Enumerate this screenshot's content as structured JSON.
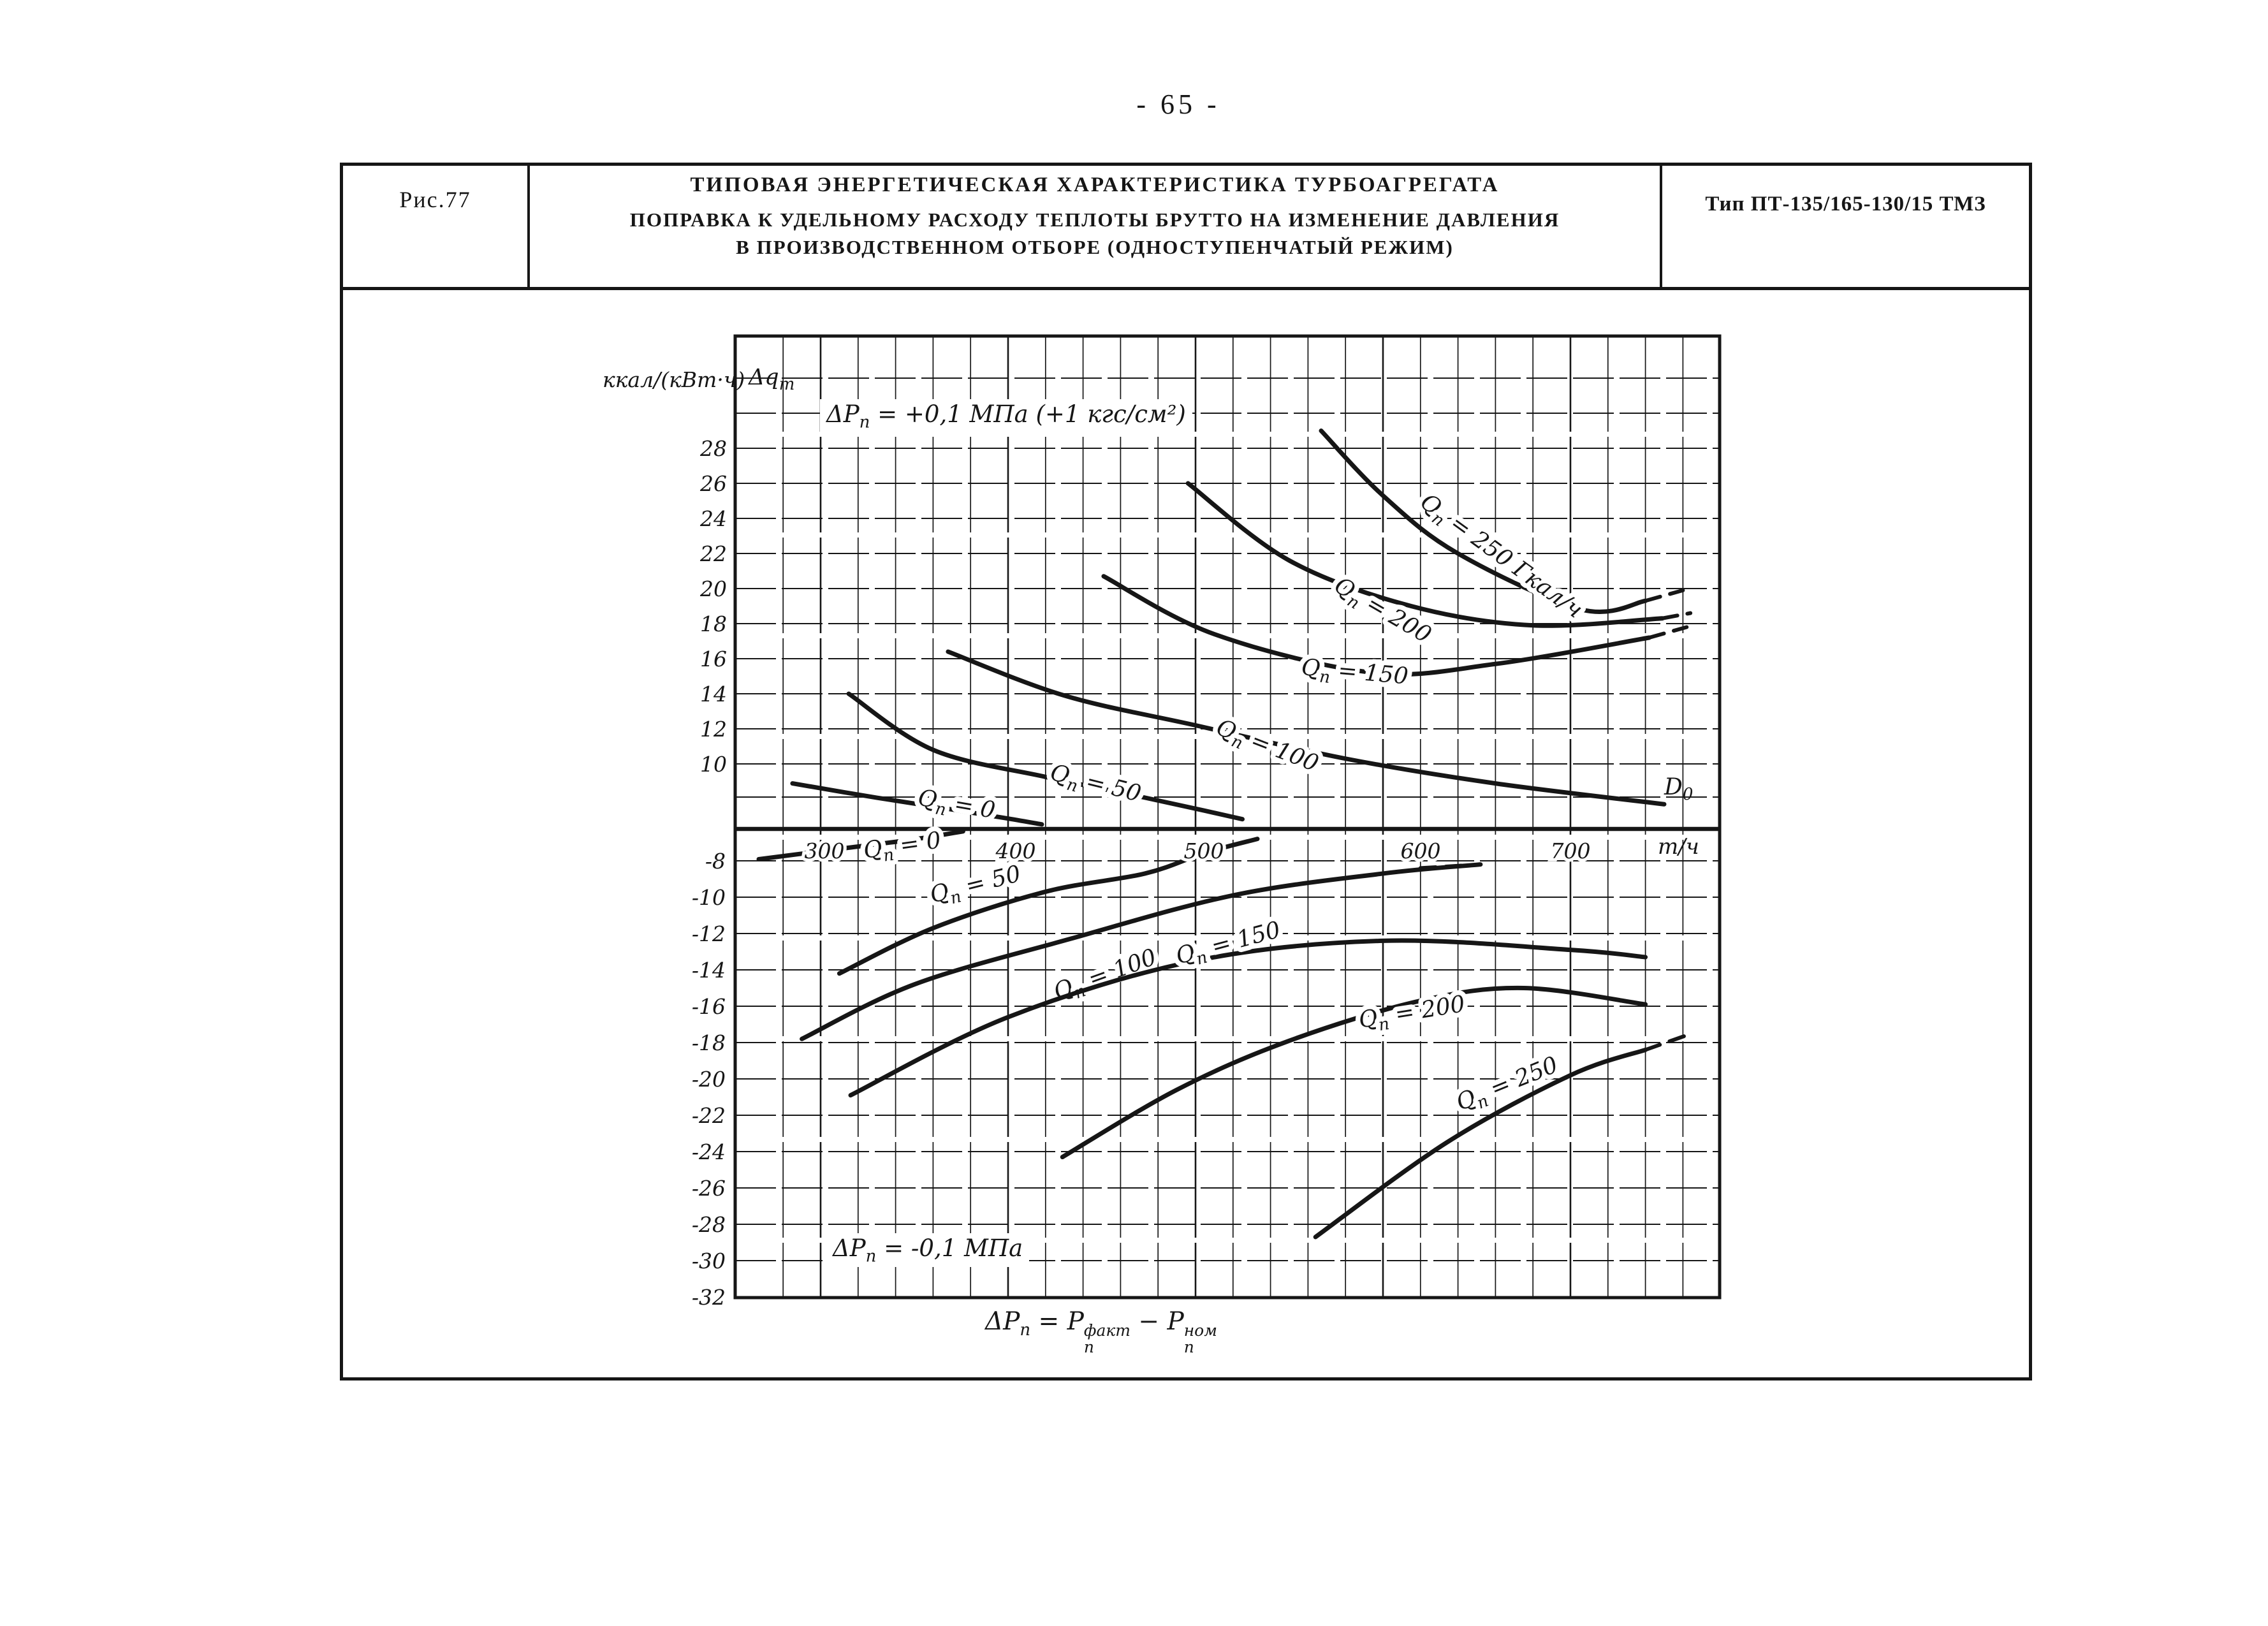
{
  "page": {
    "number": "- 65 -"
  },
  "header": {
    "figure_label": "Рис.77",
    "title_line1": "ТИПОВАЯ ЭНЕРГЕТИЧЕСКАЯ ХАРАКТЕРИСТИКА ТУРБОАГРЕГАТА",
    "title_line2": "ПОПРАВКА К УДЕЛЬНОМУ РАСХОДУ ТЕПЛОТЫ БРУТТО НА ИЗМЕНЕНИЕ ДАВЛЕНИЯ",
    "title_line3": "В ПРОИЗВОДСТВЕННОМ ОТБОРЕ (ОДНОСТУПЕНЧАТЫЙ РЕЖИМ)",
    "type_label": "Тип ПТ-135/165-130/15 ТМЗ"
  },
  "axis": {
    "unit_left": "ккал/(кВт·ч)",
    "y_symbol": "Δq",
    "y_symbol_sub": "т",
    "x_symbol": "D",
    "x_symbol_sub": "0",
    "x_unit": "т/ч"
  },
  "annotations": {
    "top_p1": "ΔP",
    "top_sub": "п",
    "top_p2": " = +0,1 МПа (+1 кгс/см²)",
    "bottom_p1": "ΔP",
    "bottom_sub": "п",
    "bottom_p2": " = -0,1 МПа",
    "formula_p1": "ΔP",
    "formula_sub1": "п",
    "formula_p2": " = P",
    "formula_sup2": "факт",
    "formula_sub2": "п",
    "formula_p3": " − P",
    "formula_sup3": "ном",
    "formula_sub3": "п"
  },
  "chart_data": {
    "type": "line",
    "title": "Поправка к удельному расходу теплоты брутто на изменение давления в производственном отборе (одноступенчатый режим)",
    "xlabel": "D0, т/ч",
    "ylabel": "Δqт, ккал/(кВт·ч)",
    "xlim": [
      260,
      780
    ],
    "x_ticks": [
      "300",
      "400",
      "500",
      "600",
      "700"
    ],
    "y_ticks_upper": [
      "28",
      "26",
      "24",
      "22",
      "20",
      "18",
      "16",
      "14",
      "12",
      "10"
    ],
    "y_ticks_lower": [
      "-8",
      "-10",
      "-12",
      "-14",
      "-16",
      "-18",
      "-20",
      "-22",
      "-24",
      "-26",
      "-28",
      "-30",
      "-32"
    ],
    "grid": true,
    "legend_position": "labels-on-curves",
    "families": [
      {
        "label": "ΔPп = +0,1 МПа (+1 кгс/см²)",
        "series": [
          {
            "name": "Qп = 0",
            "points": [
              [
                285,
                7
              ],
              [
                330,
                4.8
              ],
              [
                370,
                3
              ],
              [
                400,
                1.6
              ],
              [
                418,
                0.7
              ]
            ]
          },
          {
            "name": "Qп = 50",
            "points": [
              [
                315,
                14
              ],
              [
                360,
                10.8
              ],
              [
                420,
                8
              ],
              [
                470,
                5
              ],
              [
                505,
                2.8
              ],
              [
                525,
                1.5
              ]
            ]
          },
          {
            "name": "Qп = 100",
            "points": [
              [
                368,
                16.4
              ],
              [
                430,
                13.9
              ],
              [
                500,
                12.2
              ],
              [
                580,
                10.3
              ],
              [
                660,
                7
              ],
              [
                750,
                3.8
              ]
            ]
          },
          {
            "name": "Qп = 150",
            "points": [
              [
                451,
                20.7
              ],
              [
                510,
                17.4
              ],
              [
                595,
                15.2
              ],
              [
                660,
                15.7
              ],
              [
                742,
                17.2
              ]
            ],
            "tail": [
              [
                742,
                17.2
              ],
              [
                762,
                17.8
              ]
            ]
          },
          {
            "name": "Qп = 200",
            "points": [
              [
                496,
                26
              ],
              [
                550,
                21.6
              ],
              [
                615,
                19
              ],
              [
                680,
                17.9
              ],
              [
                749,
                18.3
              ]
            ],
            "tail": [
              [
                749,
                18.3
              ],
              [
                764,
                18.6
              ]
            ]
          },
          {
            "name": "Qп = 250 Гкал/ч",
            "points": [
              [
                567,
                29
              ],
              [
                600,
                25.3
              ],
              [
                640,
                22
              ],
              [
                706,
                18.8
              ],
              [
                740,
                19.3
              ]
            ],
            "tail": [
              [
                740,
                19.3
              ],
              [
                760,
                19.9
              ]
            ]
          }
        ]
      },
      {
        "label": "ΔPп = -0,1 МПа",
        "series": [
          {
            "name": "Qп = 0",
            "points": [
              [
                267,
                -7.6
              ],
              [
                310,
                -5
              ],
              [
                350,
                -2.6
              ],
              [
                376,
                -0.6
              ]
            ]
          },
          {
            "name": "Qп = 50",
            "points": [
              [
                310,
                -14.2
              ],
              [
                360,
                -11.7
              ],
              [
                420,
                -9.7
              ],
              [
                473,
                -8.7
              ],
              [
                505,
                -6
              ],
              [
                533,
                -2.5
              ]
            ]
          },
          {
            "name": "Qп = 100",
            "points": [
              [
                290,
                -17.8
              ],
              [
                350,
                -14.8
              ],
              [
                433,
                -12.3
              ],
              [
                520,
                -9.9
              ],
              [
                600,
                -8.7
              ],
              [
                652,
                -8.2
              ]
            ],
            "tail": [
              [
                620,
                -8.4
              ],
              [
                652,
                -8.2
              ]
            ]
          },
          {
            "name": "Qп = 150",
            "points": [
              [
                316,
                -20.9
              ],
              [
                400,
                -16.6
              ],
              [
                500,
                -13.5
              ],
              [
                600,
                -12.4
              ],
              [
                700,
                -12.9
              ],
              [
                740,
                -13.3
              ]
            ]
          },
          {
            "name": "Qп = 200",
            "points": [
              [
                429,
                -24.3
              ],
              [
                490,
                -20.6
              ],
              [
                550,
                -17.9
              ],
              [
                620,
                -15.7
              ],
              [
                675,
                -15.0
              ],
              [
                740,
                -15.9
              ]
            ]
          },
          {
            "name": "Qп = 250",
            "points": [
              [
                564,
                -28.7
              ],
              [
                634,
                -23.5
              ],
              [
                700,
                -19.8
              ],
              [
                740,
                -18.4
              ]
            ],
            "tail": [
              [
                740,
                -18.4
              ],
              [
                762,
                -17.6
              ]
            ]
          }
        ]
      }
    ]
  }
}
